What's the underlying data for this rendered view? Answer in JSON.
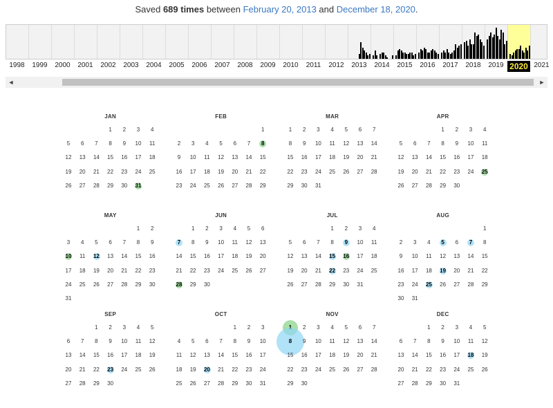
{
  "summary": {
    "prefix": "Saved ",
    "count": "689 times",
    "middle": " between ",
    "start": "February 20, 2013",
    "and": " and ",
    "end": "December 18, 2020",
    "suffix": "."
  },
  "timeline": {
    "years": [
      "1998",
      "1999",
      "2000",
      "2001",
      "2002",
      "2003",
      "2004",
      "2005",
      "2006",
      "2007",
      "2008",
      "2009",
      "2010",
      "2011",
      "2012",
      "2013",
      "2014",
      "2015",
      "2016",
      "2017",
      "2018",
      "2019",
      "2020",
      "2021"
    ],
    "selected_year": "2020",
    "activity_levels": {
      "2013": [
        0,
        0,
        0,
        0,
        0,
        0.15,
        0.5,
        0.35,
        0.25,
        0.2,
        0.1,
        0.15
      ],
      "2014": [
        0.1,
        0.25,
        0.1,
        0,
        0.15,
        0.2,
        0.2,
        0.1,
        0.05,
        0,
        0,
        0.1
      ],
      "2015": [
        0.1,
        0.25,
        0.3,
        0.25,
        0.2,
        0.2,
        0.15,
        0.15,
        0.2,
        0.2,
        0.1,
        0.15
      ],
      "2016": [
        0.2,
        0.3,
        0.25,
        0.35,
        0.3,
        0.2,
        0.2,
        0.25,
        0.3,
        0.25,
        0.2,
        0.15
      ],
      "2017": [
        0.2,
        0.25,
        0.2,
        0.3,
        0.2,
        0.15,
        0.2,
        0.25,
        0.45,
        0.35,
        0.4,
        0.45
      ],
      "2018": [
        0.5,
        0.55,
        0.4,
        0.6,
        0.45,
        0.45,
        0.8,
        0.7,
        0.75,
        0.6,
        0.5,
        0.4
      ],
      "2019": [
        0.6,
        0.7,
        0.8,
        0.65,
        0.75,
        0.95,
        0.7,
        0.6,
        0.9,
        0.8,
        0.45,
        0.55
      ],
      "2020": [
        0.15,
        0.1,
        0.2,
        0.25,
        0.3,
        0.3,
        0.4,
        0.25,
        0.2,
        0.35,
        0.25,
        0.4
      ]
    },
    "bar_color": "#000000",
    "selected_color": "#ffff99"
  },
  "scrollbar": {
    "left_arrow": "◄",
    "right_arrow": "►"
  },
  "calendar": {
    "months": [
      {
        "name": "JAN",
        "start": 3,
        "days": 31,
        "marks": [
          {
            "d": 31,
            "c": "green",
            "s": 1
          }
        ]
      },
      {
        "name": "FEB",
        "start": 6,
        "days": 29,
        "marks": [
          {
            "d": 8,
            "c": "green",
            "s": 1
          }
        ]
      },
      {
        "name": "MAR",
        "start": 0,
        "days": 31,
        "marks": []
      },
      {
        "name": "APR",
        "start": 3,
        "days": 30,
        "marks": [
          {
            "d": 25,
            "c": "green",
            "s": 1
          }
        ]
      },
      {
        "name": "MAY",
        "start": 5,
        "days": 31,
        "marks": [
          {
            "d": 10,
            "c": "green",
            "s": 1
          },
          {
            "d": 12,
            "c": "blue",
            "s": 1
          }
        ]
      },
      {
        "name": "JUN",
        "start": 1,
        "days": 30,
        "marks": [
          {
            "d": 7,
            "c": "blue",
            "s": 1
          },
          {
            "d": 28,
            "c": "green",
            "s": 1
          }
        ]
      },
      {
        "name": "JUL",
        "start": 3,
        "days": 31,
        "marks": [
          {
            "d": 9,
            "c": "blue",
            "s": 1
          },
          {
            "d": 15,
            "c": "blue",
            "s": 1
          },
          {
            "d": 16,
            "c": "green",
            "s": 1
          },
          {
            "d": 22,
            "c": "blue",
            "s": 1
          }
        ]
      },
      {
        "name": "AUG",
        "start": 6,
        "days": 31,
        "marks": [
          {
            "d": 5,
            "c": "blue",
            "s": 1
          },
          {
            "d": 7,
            "c": "blue",
            "s": 1
          },
          {
            "d": 19,
            "c": "blue",
            "s": 1
          },
          {
            "d": 25,
            "c": "blue",
            "s": 1
          }
        ]
      },
      {
        "name": "SEP",
        "start": 2,
        "days": 30,
        "marks": [
          {
            "d": 23,
            "c": "blue",
            "s": 1
          }
        ]
      },
      {
        "name": "OCT",
        "start": 4,
        "days": 31,
        "marks": [
          {
            "d": 20,
            "c": "blue",
            "s": 1
          }
        ]
      },
      {
        "name": "NOV",
        "start": 0,
        "days": 30,
        "marks": [
          {
            "d": 1,
            "c": "green",
            "s": 2.2
          },
          {
            "d": 8,
            "c": "blue",
            "s": 4
          }
        ]
      },
      {
        "name": "DEC",
        "start": 2,
        "days": 31,
        "marks": [
          {
            "d": 18,
            "c": "blue",
            "s": 1
          }
        ]
      }
    ]
  }
}
